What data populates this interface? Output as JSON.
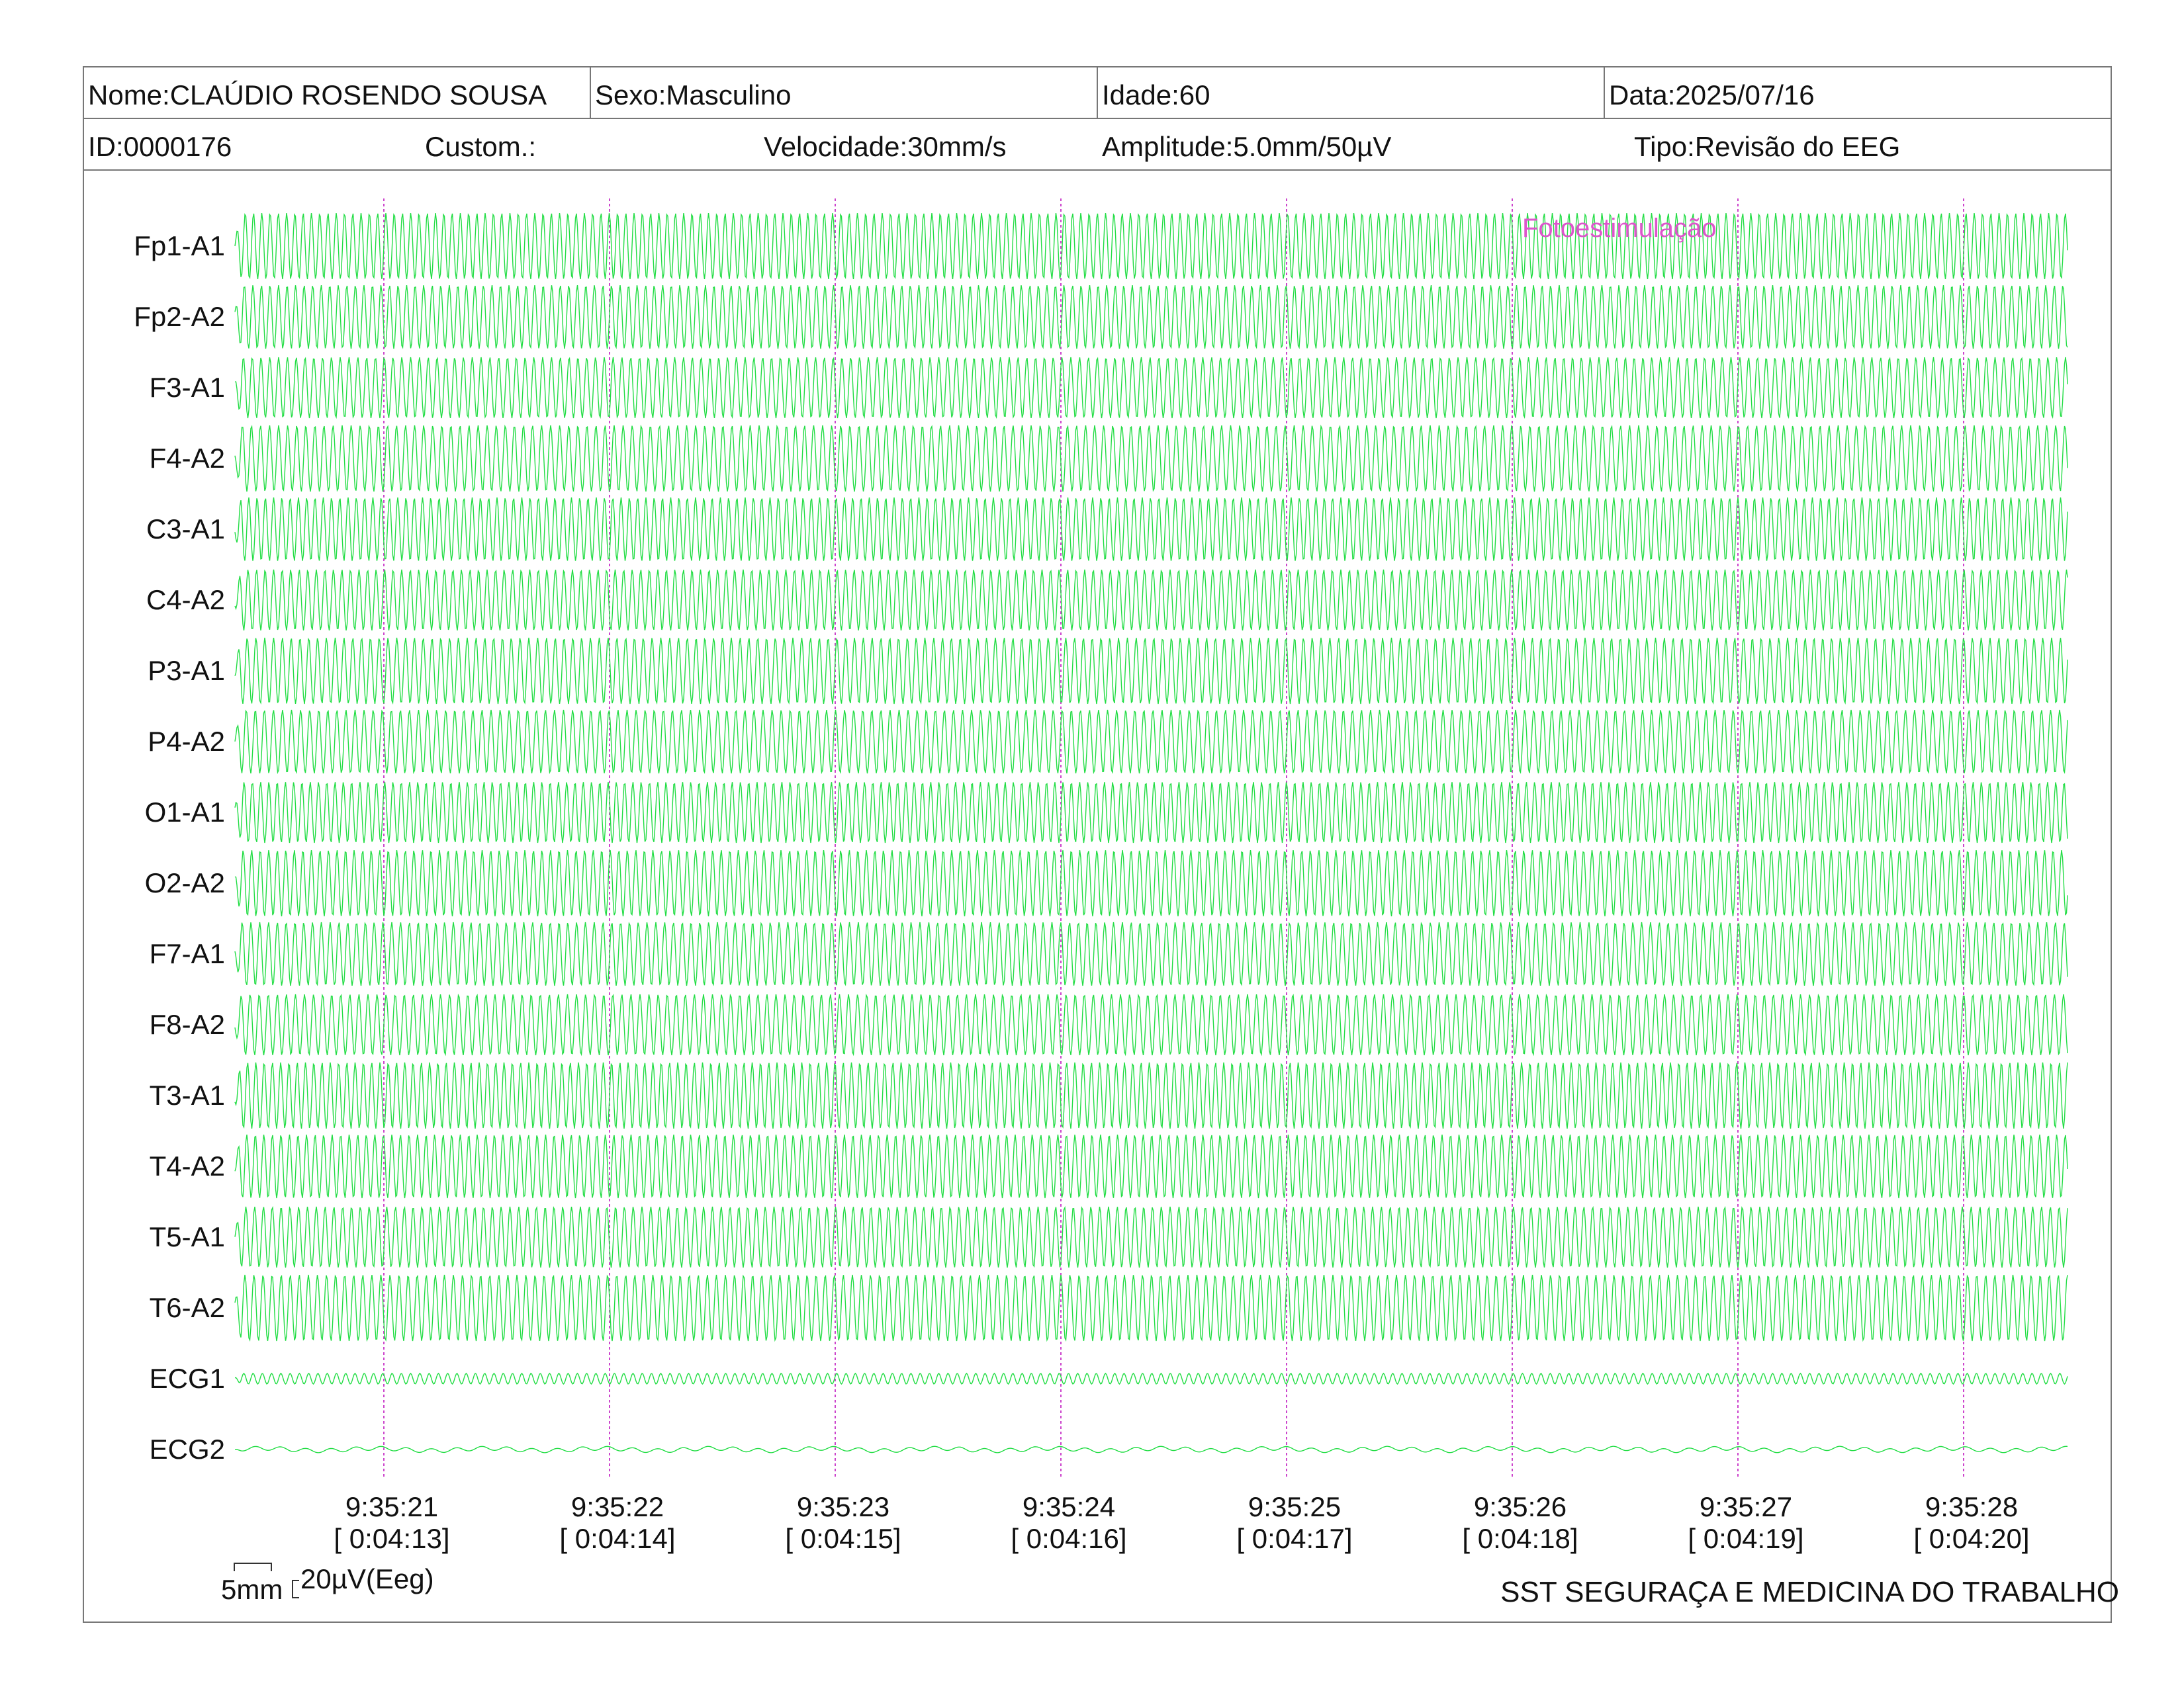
{
  "header": {
    "name": "Nome:CLAÚDIO ROSENDO SOUSA",
    "sex": "Sexo:Masculino",
    "age": "Idade:60",
    "date": "Data:2025/07/16",
    "id": "ID:0000176",
    "custom": "Custom.:",
    "speed": "Velocidade:30mm/s",
    "amplitude": "Amplitude:5.0mm/50µV",
    "type": "Tipo:Revisão do EEG"
  },
  "chart_data": {
    "type": "line",
    "channels": [
      "Fp1-A1",
      "Fp2-A2",
      "F3-A1",
      "F4-A2",
      "C3-A1",
      "C4-A2",
      "P3-A1",
      "P4-A2",
      "O1-A1",
      "O2-A2",
      "F7-A1",
      "F8-A2",
      "T3-A1",
      "T4-A2",
      "T5-A1",
      "T6-A2",
      "ECG1",
      "ECG2"
    ],
    "time_ticks": [
      {
        "time": "9:35:21",
        "elapsed": "[ 0:04:13]"
      },
      {
        "time": "9:35:22",
        "elapsed": "[ 0:04:14]"
      },
      {
        "time": "9:35:23",
        "elapsed": "[ 0:04:15]"
      },
      {
        "time": "9:35:24",
        "elapsed": "[ 0:04:16]"
      },
      {
        "time": "9:35:25",
        "elapsed": "[ 0:04:17]"
      },
      {
        "time": "9:35:26",
        "elapsed": "[ 0:04:18]"
      },
      {
        "time": "9:35:27",
        "elapsed": "[ 0:04:19]"
      },
      {
        "time": "9:35:28",
        "elapsed": "[ 0:04:20]"
      }
    ],
    "annotation": "Fotoestimulação",
    "scale": {
      "time_label": "5mm",
      "amplitude_label": "20µV(Eeg)"
    },
    "colors": {
      "trace": "#22dd44",
      "marker": "#cc44cc",
      "annotation": "#dd55cc"
    }
  },
  "footer": "SST SEGURAÇA E MEDICINA DO TRABALHO"
}
